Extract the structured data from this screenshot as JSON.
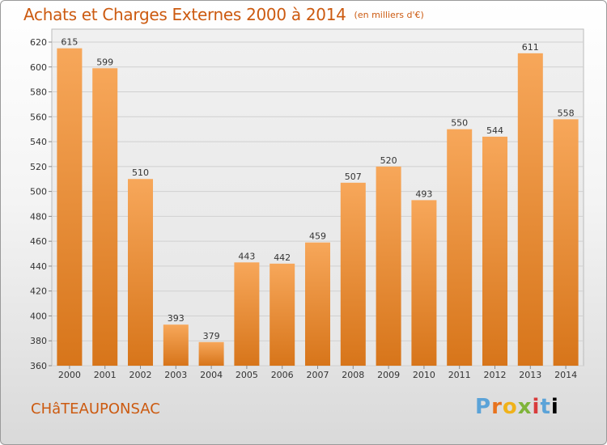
{
  "header": {
    "title": "Achats et Charges Externes 2000 à 2014",
    "subtitle": "(en milliers d'€)"
  },
  "footer": {
    "commune": "CHâTEAUPONSAC",
    "logo": [
      "P",
      "r",
      "o",
      "x",
      "i",
      "t",
      "i"
    ]
  },
  "colors": {
    "title": "#cc5a10",
    "bar_light": "#f5a253",
    "bar_dark": "#d97a1a",
    "grid": "#d0d0d0"
  },
  "chart_data": {
    "type": "bar",
    "categories": [
      "2000",
      "2001",
      "2002",
      "2003",
      "2004",
      "2005",
      "2006",
      "2007",
      "2008",
      "2009",
      "2010",
      "2011",
      "2012",
      "2013",
      "2014"
    ],
    "values": [
      615,
      599,
      510,
      393,
      379,
      443,
      442,
      459,
      507,
      520,
      493,
      550,
      544,
      611,
      558
    ],
    "ylim": [
      360,
      620
    ],
    "yticks": [
      360,
      380,
      400,
      420,
      440,
      460,
      480,
      500,
      520,
      540,
      560,
      580,
      600,
      620
    ],
    "grid": true
  }
}
